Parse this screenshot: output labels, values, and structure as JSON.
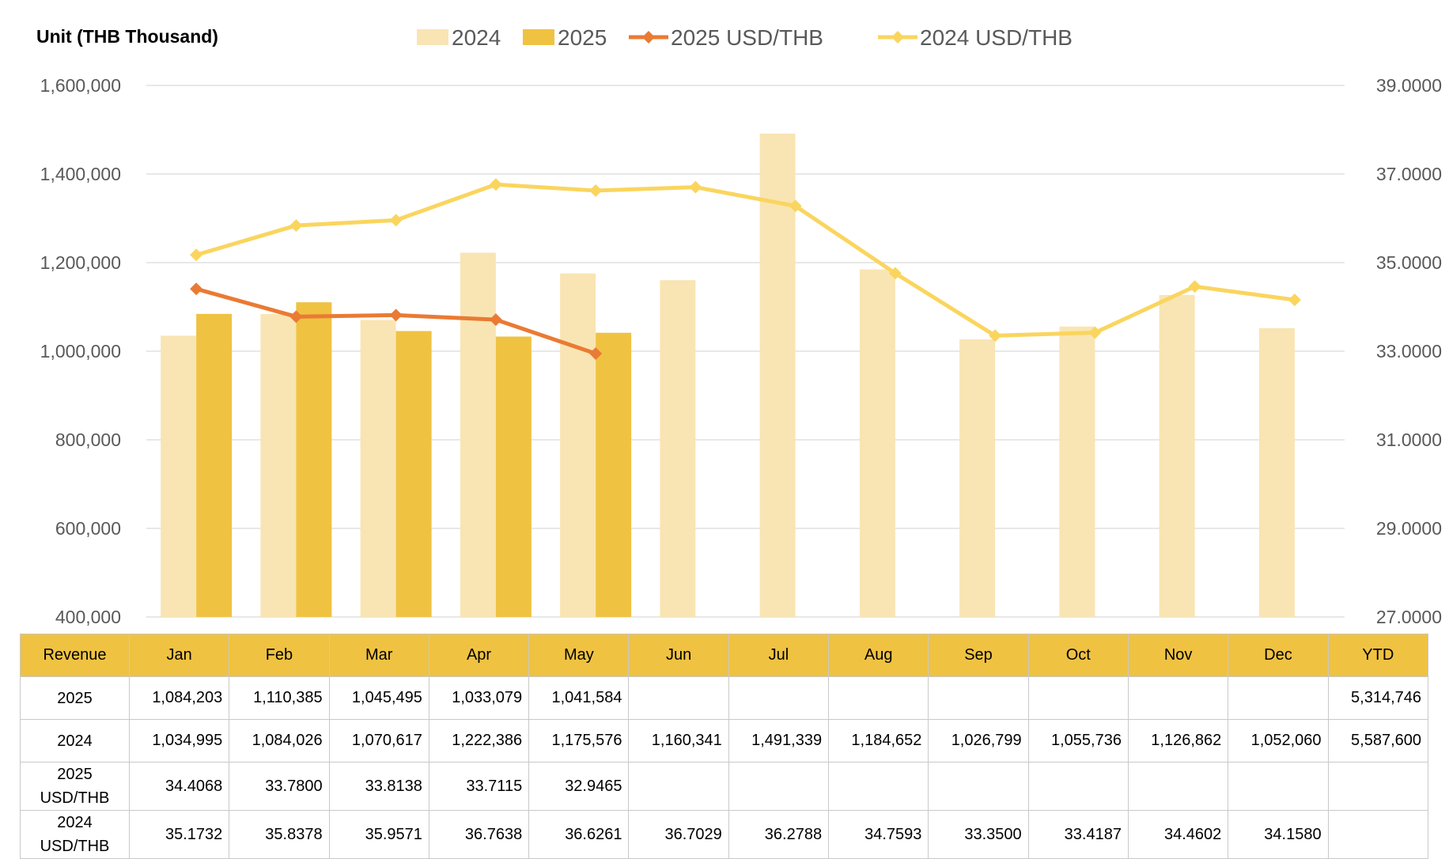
{
  "chart_data": {
    "type": "bar",
    "unit_label": "Unit (THB  Thousand)",
    "categories": [
      "Jan",
      "Feb",
      "Mar",
      "Apr",
      "May",
      "Jun",
      "Jul",
      "Aug",
      "Sep",
      "Oct",
      "Nov",
      "Dec"
    ],
    "series": [
      {
        "name": "2024",
        "kind": "bar",
        "axis": "left",
        "color": "#f9e5b3",
        "values": [
          1034995,
          1084026,
          1070617,
          1222386,
          1175576,
          1160341,
          1491339,
          1184652,
          1026799,
          1055736,
          1126862,
          1052060
        ]
      },
      {
        "name": "2025",
        "kind": "bar",
        "axis": "left",
        "color": "#efc242",
        "values": [
          1084203,
          1110385,
          1045495,
          1033079,
          1041584,
          null,
          null,
          null,
          null,
          null,
          null,
          null
        ]
      },
      {
        "name": "2025 USD/THB",
        "kind": "line",
        "axis": "right",
        "color": "#ea7a34",
        "values": [
          34.4068,
          33.78,
          33.8138,
          33.7115,
          32.9465,
          null,
          null,
          null,
          null,
          null,
          null,
          null
        ]
      },
      {
        "name": "2024 USD/THB",
        "kind": "line",
        "axis": "right",
        "color": "#fad55e",
        "values": [
          35.1732,
          35.8378,
          35.9571,
          36.7638,
          36.6261,
          36.7029,
          36.2788,
          34.7593,
          33.35,
          33.4187,
          34.4602,
          34.158
        ]
      }
    ],
    "y_left": {
      "min": 400000,
      "max": 1600000,
      "ticks": [
        "400,000",
        "600,000",
        "800,000",
        "1,000,000",
        "1,200,000",
        "1,400,000",
        "1,600,000"
      ]
    },
    "y_right": {
      "min": 27,
      "max": 39,
      "ticks": [
        "27.0000",
        "29.0000",
        "31.0000",
        "33.0000",
        "35.0000",
        "37.0000",
        "39.0000"
      ]
    },
    "grid": true,
    "legend_placement": "top"
  },
  "table": {
    "header": [
      "Revenue",
      "Jan",
      "Feb",
      "Mar",
      "Apr",
      "May",
      "Jun",
      "Jul",
      "Aug",
      "Sep",
      "Oct",
      "Nov",
      "Dec",
      "YTD"
    ],
    "rows": [
      {
        "label": "2025",
        "cells": [
          "1,084,203",
          "1,110,385",
          "1,045,495",
          "1,033,079",
          "1,041,584",
          "",
          "",
          "",
          "",
          "",
          "",
          ""
        ],
        "ytd": "5,314,746"
      },
      {
        "label": "2024",
        "cells": [
          "1,034,995",
          "1,084,026",
          "1,070,617",
          "1,222,386",
          "1,175,576",
          "1,160,341",
          "1,491,339",
          "1,184,652",
          "1,026,799",
          "1,055,736",
          "1,126,862",
          "1,052,060"
        ],
        "ytd": "5,587,600"
      },
      {
        "label": "2025 USD/THB",
        "cells": [
          "34.4068",
          "33.7800",
          "33.8138",
          "33.7115",
          "32.9465",
          "",
          "",
          "",
          "",
          "",
          "",
          ""
        ],
        "ytd": ""
      },
      {
        "label": "2024 USD/THB",
        "cells": [
          "35.1732",
          "35.8378",
          "35.9571",
          "36.7638",
          "36.6261",
          "36.7029",
          "36.2788",
          "34.7593",
          "33.3500",
          "33.4187",
          "34.4602",
          "34.1580"
        ],
        "ytd": ""
      }
    ]
  }
}
